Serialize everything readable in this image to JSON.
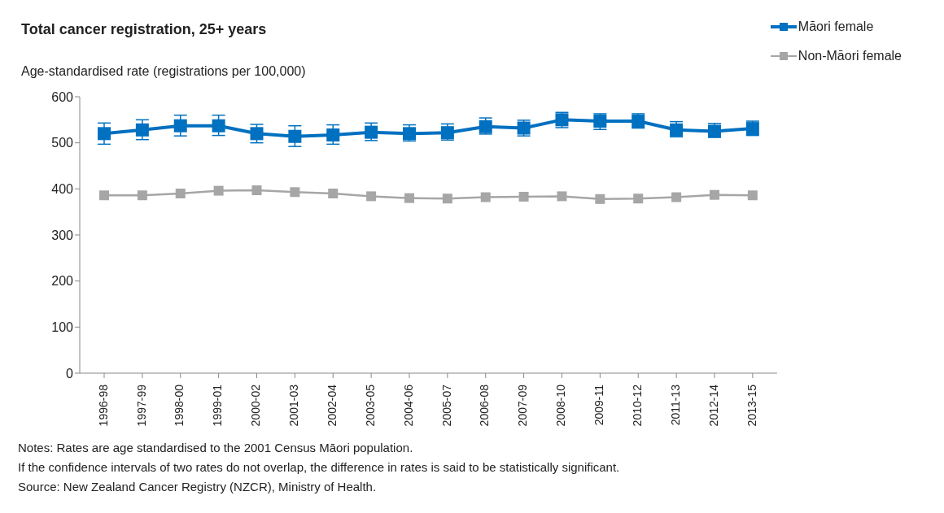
{
  "chart_data": {
    "type": "line",
    "title": "Total cancer registration, 25+ years",
    "ylabel": "Age-standardised rate (registrations per 100,000)",
    "categories": [
      "1996-98",
      "1997-99",
      "1998-00",
      "1999-01",
      "2000-02",
      "2001-03",
      "2002-04",
      "2003-05",
      "2004-06",
      "2005-07",
      "2006-08",
      "2007-09",
      "2008-10",
      "2009-11",
      "2010-12",
      "2011-13",
      "2012-14",
      "2013-15"
    ],
    "series": [
      {
        "name": "Māori female",
        "color": "#0070c0",
        "values": [
          520,
          528,
          537,
          537,
          520,
          514,
          517,
          523,
          520,
          522,
          535,
          532,
          550,
          547,
          547,
          528,
          525,
          531
        ],
        "errors": [
          [
            497,
            543
          ],
          [
            507,
            550
          ],
          [
            515,
            560
          ],
          [
            516,
            560
          ],
          [
            500,
            540
          ],
          [
            492,
            537
          ],
          [
            497,
            539
          ],
          [
            505,
            543
          ],
          [
            504,
            539
          ],
          [
            506,
            541
          ],
          [
            519,
            554
          ],
          [
            515,
            549
          ],
          [
            533,
            566
          ],
          [
            529,
            563
          ],
          [
            532,
            563
          ],
          [
            513,
            546
          ],
          [
            512,
            542
          ],
          [
            516,
            547
          ]
        ]
      },
      {
        "name": "Non-Māori female",
        "color": "#a6a6a6",
        "values": [
          386,
          386,
          390,
          396,
          397,
          393,
          390,
          384,
          380,
          379,
          382,
          383,
          384,
          378,
          379,
          382,
          387,
          386
        ]
      }
    ],
    "ylim": [
      0,
      600
    ],
    "yticks": [
      0,
      100,
      200,
      300,
      400,
      500,
      600
    ],
    "grid": false,
    "legend": "top right",
    "marker": "square",
    "line_style": "solid",
    "annotations": [
      "Notes: Rates are age standardised to the 2001 Census Māori population.",
      "If the confidence intervals of two rates do not overlap, the difference in rates is said to be statistically significant.",
      "Source: New Zealand Cancer Registry (NZCR), Ministry of Health."
    ]
  }
}
